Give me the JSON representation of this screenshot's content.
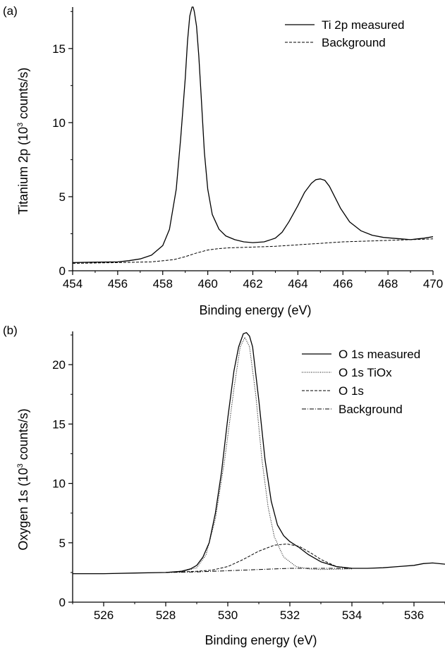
{
  "chart_data": [
    {
      "type": "line",
      "panel_label": "(a)",
      "xlabel": "Binding energy (eV)",
      "ylabel_main": "Titanium 2p (10",
      "ylabel_sup": "3",
      "ylabel_tail": " counts/s)",
      "xlim": [
        454,
        470
      ],
      "ylim": [
        0,
        17.8
      ],
      "x_ticks": [
        454,
        456,
        458,
        460,
        462,
        464,
        466,
        468,
        470
      ],
      "y_ticks": [
        0,
        5,
        10,
        15
      ],
      "grid": false,
      "legend_placement": "top-right",
      "series": [
        {
          "name": "Ti 2p measured",
          "style": "solid",
          "x": [
            454,
            455,
            456,
            456.5,
            457,
            457.5,
            458,
            458.3,
            458.6,
            458.8,
            459.0,
            459.1,
            459.2,
            459.3,
            459.35,
            459.4,
            459.5,
            459.6,
            459.7,
            459.85,
            460,
            460.2,
            460.5,
            460.8,
            461.2,
            461.6,
            462,
            462.5,
            463,
            463.3,
            463.6,
            464,
            464.3,
            464.6,
            464.8,
            465.0,
            465.2,
            465.4,
            465.6,
            465.9,
            466.3,
            466.8,
            467.3,
            467.8,
            468.2,
            468.6,
            469,
            469.3,
            469.6,
            470
          ],
          "values": [
            0.55,
            0.58,
            0.6,
            0.68,
            0.8,
            1.05,
            1.7,
            2.8,
            5.5,
            9.0,
            13.0,
            15.5,
            17.2,
            17.8,
            17.8,
            17.5,
            16.5,
            14.5,
            12.0,
            8.0,
            5.5,
            3.8,
            2.8,
            2.35,
            2.1,
            1.95,
            1.9,
            1.95,
            2.2,
            2.6,
            3.3,
            4.4,
            5.3,
            5.9,
            6.15,
            6.2,
            6.1,
            5.7,
            5.1,
            4.2,
            3.3,
            2.7,
            2.4,
            2.25,
            2.2,
            2.15,
            2.1,
            2.15,
            2.2,
            2.3
          ]
        },
        {
          "name": "Background",
          "style": "dashed",
          "x": [
            454,
            456,
            457.5,
            458.5,
            459,
            459.5,
            460,
            460.5,
            461,
            462,
            463,
            464,
            465,
            466,
            467,
            468,
            469,
            470
          ],
          "values": [
            0.5,
            0.55,
            0.6,
            0.75,
            0.95,
            1.2,
            1.4,
            1.5,
            1.55,
            1.6,
            1.65,
            1.75,
            1.85,
            1.95,
            2.0,
            2.05,
            2.1,
            2.15
          ]
        }
      ]
    },
    {
      "type": "line",
      "panel_label": "(b)",
      "xlabel": "Binding energy (eV)",
      "ylabel_main": "Oxygen 1s (10",
      "ylabel_sup": "3",
      "ylabel_tail": " counts/s)",
      "xlim": [
        525,
        537
      ],
      "ylim": [
        0,
        22.8
      ],
      "x_ticks": [
        526,
        528,
        530,
        532,
        534,
        536
      ],
      "y_ticks": [
        0,
        5,
        10,
        15,
        20
      ],
      "grid": false,
      "legend_placement": "top-right",
      "series": [
        {
          "name": "O 1s measured",
          "style": "solid",
          "x": [
            525,
            526,
            527,
            528,
            528.5,
            528.8,
            529,
            529.2,
            529.4,
            529.6,
            529.8,
            530,
            530.2,
            530.35,
            530.5,
            530.6,
            530.7,
            530.8,
            531,
            531.2,
            531.4,
            531.6,
            531.8,
            532,
            532.3,
            532.6,
            533,
            533.5,
            534,
            534.5,
            535,
            535.5,
            536,
            536.3,
            536.6,
            537
          ],
          "values": [
            2.4,
            2.4,
            2.45,
            2.5,
            2.6,
            2.8,
            3.1,
            3.8,
            5.0,
            7.5,
            11.0,
            15.5,
            19.5,
            21.5,
            22.6,
            22.7,
            22.4,
            21.5,
            17.0,
            12.0,
            8.5,
            6.5,
            5.6,
            5.1,
            4.6,
            4.0,
            3.4,
            3.0,
            2.85,
            2.85,
            2.9,
            3.0,
            3.1,
            3.25,
            3.3,
            3.2
          ]
        },
        {
          "name": "O 1s TiOx",
          "style": "dotted",
          "x": [
            528,
            528.5,
            529,
            529.3,
            529.6,
            529.9,
            530.2,
            530.4,
            530.55,
            530.7,
            530.9,
            531.1,
            531.3,
            531.5,
            531.8,
            532.2,
            532.6,
            533,
            534
          ],
          "values": [
            2.5,
            2.55,
            2.9,
            4.0,
            7.0,
            12.0,
            18.0,
            21.5,
            22.3,
            21.5,
            17.5,
            12.0,
            8.0,
            5.5,
            3.8,
            3.0,
            2.8,
            2.75,
            2.8
          ]
        },
        {
          "name": "O 1s",
          "style": "dashed",
          "x": [
            528,
            529,
            529.5,
            530,
            530.5,
            531,
            531.5,
            531.9,
            532.3,
            532.7,
            533,
            533.5,
            534
          ],
          "values": [
            2.5,
            2.6,
            2.7,
            3.0,
            3.6,
            4.3,
            4.8,
            4.9,
            4.7,
            4.1,
            3.6,
            3.0,
            2.85
          ]
        },
        {
          "name": "Background",
          "style": "dashdot",
          "x": [
            528,
            529,
            530,
            531,
            532,
            533,
            534
          ],
          "values": [
            2.5,
            2.55,
            2.65,
            2.75,
            2.85,
            2.85,
            2.85
          ]
        }
      ]
    }
  ]
}
